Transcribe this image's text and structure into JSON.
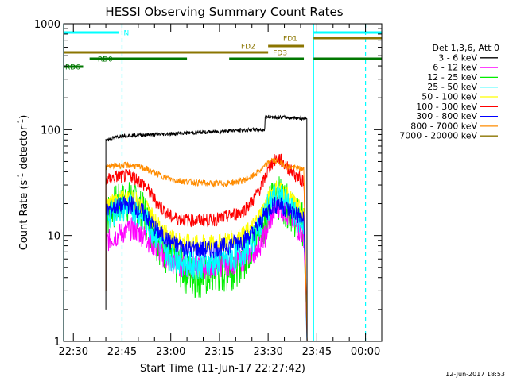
{
  "chart_data": {
    "type": "line",
    "title": "HESSI Observing Summary Count Rates",
    "xlabel": "Start Time (11-Jun-17 22:27:42)",
    "ylabel_main": "Count Rate (s",
    "ylabel_sup1": "-1",
    "ylabel_mid": " detector",
    "ylabel_sup2": "-1",
    "ylabel_end": ")",
    "y_scale": "log",
    "ylim": [
      1,
      1000
    ],
    "xlim_minutes_after_2230": [
      -3,
      95
    ],
    "x_ticks": [
      {
        "label": "22:30",
        "t": 0
      },
      {
        "label": "22:45",
        "t": 15
      },
      {
        "label": "23:00",
        "t": 30
      },
      {
        "label": "23:15",
        "t": 45
      },
      {
        "label": "23:30",
        "t": 60
      },
      {
        "label": "23:45",
        "t": 75
      },
      {
        "label": "00:00",
        "t": 90
      }
    ],
    "y_ticks": [
      {
        "label": "1",
        "v": 1
      },
      {
        "label": "10",
        "v": 10
      },
      {
        "label": "100",
        "v": 100
      },
      {
        "label": "1000",
        "v": 1000
      }
    ],
    "legend_header": "Det 1,3,6, Att 0",
    "legend_position": "right",
    "series": [
      {
        "name": "3 - 6 keV",
        "color": "#000000",
        "t": [
          10,
          10,
          15,
          25,
          35,
          45,
          48,
          58,
          59,
          59,
          60,
          66,
          71,
          72,
          72
        ],
        "values": [
          2,
          80,
          88,
          90,
          93,
          96,
          98,
          100,
          100,
          130,
          132,
          130,
          128,
          128,
          1
        ]
      },
      {
        "name": "6 - 12 keV",
        "color": "#ff00ff",
        "t": [
          10,
          10,
          13,
          18,
          22,
          26,
          30,
          36,
          42,
          47,
          52,
          55,
          57,
          59,
          61,
          63,
          66,
          69,
          71,
          72
        ],
        "values": [
          3,
          9,
          10,
          12,
          10,
          7.5,
          5.5,
          5.2,
          5.2,
          5.4,
          6,
          7,
          8,
          10,
          15,
          20,
          16,
          12,
          10,
          1
        ]
      },
      {
        "name": "12 - 25 keV",
        "color": "#00ee00",
        "t": [
          10,
          10,
          13,
          18,
          22,
          26,
          30,
          36,
          42,
          47,
          52,
          55,
          57,
          59,
          61,
          63,
          66,
          69,
          71,
          72
        ],
        "values": [
          3,
          16,
          21,
          23,
          17,
          10,
          6.5,
          4.5,
          4.5,
          5,
          6.5,
          8.5,
          11,
          16,
          23,
          26,
          21,
          16,
          14,
          1
        ]
      },
      {
        "name": "25 - 50 keV",
        "color": "#00ffff",
        "t": [
          10,
          10,
          13,
          18,
          22,
          26,
          30,
          36,
          42,
          47,
          52,
          55,
          57,
          59,
          61,
          63,
          66,
          69,
          71,
          72
        ],
        "values": [
          3,
          15,
          18,
          19,
          15,
          9.5,
          6.5,
          5.5,
          5.5,
          6,
          7,
          9,
          12,
          17,
          22,
          25,
          20,
          15,
          13,
          1
        ]
      },
      {
        "name": "50 - 100 keV",
        "color": "#ffff00",
        "t": [
          10,
          10,
          13,
          18,
          22,
          26,
          30,
          36,
          42,
          47,
          52,
          55,
          57,
          59,
          61,
          63,
          66,
          69,
          71,
          72
        ],
        "values": [
          3,
          19,
          22,
          23,
          19,
          13,
          9.5,
          8.5,
          8.5,
          9,
          10,
          12,
          15,
          19,
          26,
          29,
          24,
          19,
          17,
          1
        ]
      },
      {
        "name": "100 - 300 keV",
        "color": "#ff0000",
        "t": [
          10,
          10,
          13,
          18,
          22,
          26,
          30,
          36,
          42,
          47,
          52,
          55,
          57,
          59,
          61,
          63,
          66,
          69,
          71,
          72
        ],
        "values": [
          3,
          33,
          36,
          37,
          30,
          20,
          15,
          14,
          14,
          15,
          17,
          21,
          26,
          35,
          48,
          55,
          44,
          36,
          33,
          1
        ]
      },
      {
        "name": "300 - 800 keV",
        "color": "#0000ff",
        "t": [
          10,
          10,
          13,
          18,
          22,
          26,
          30,
          36,
          42,
          47,
          52,
          55,
          57,
          59,
          61,
          63,
          66,
          69,
          71,
          72
        ],
        "values": [
          3,
          17,
          19,
          20,
          16,
          11,
          8.5,
          7.5,
          7.5,
          8,
          9,
          10.5,
          12.5,
          16,
          19,
          20,
          18,
          16,
          14,
          1
        ]
      },
      {
        "name": "800 - 7000 keV",
        "color": "#ff8c00",
        "t": [
          10,
          10,
          13,
          18,
          22,
          26,
          30,
          36,
          42,
          47,
          52,
          55,
          57,
          59,
          61,
          63,
          66,
          69,
          71,
          72
        ],
        "values": [
          3,
          44,
          46,
          46,
          43,
          38,
          34,
          32,
          31,
          31,
          33,
          36,
          40,
          45,
          52,
          50,
          45,
          43,
          42,
          1
        ]
      },
      {
        "name": "7000 - 20000 keV",
        "color": "#8b7500",
        "t": [],
        "values": []
      }
    ],
    "state_bars": [
      {
        "label": "N",
        "color": "#00ffff",
        "segments": [
          [
            -3,
            14
          ],
          [
            74,
            95
          ]
        ],
        "label_t": 15.5,
        "label_side": "right",
        "row": 0
      },
      {
        "label": "FD1",
        "color": "#8b7500",
        "segments": [
          [
            74,
            95
          ]
        ],
        "label_t": 69,
        "label_side": "left",
        "row": 1
      },
      {
        "label": "FD2",
        "color": "#8b7500",
        "segments": [
          [
            60,
            71
          ]
        ],
        "label_t": 56,
        "label_side": "left",
        "row": 2
      },
      {
        "label": "FD3",
        "color": "#8b7500",
        "segments": [
          [
            -3,
            60
          ]
        ],
        "label_t": 61.5,
        "label_side": "right",
        "row": 3
      },
      {
        "label": "RD0",
        "color": "#007700",
        "segments": [
          [
            5,
            35
          ],
          [
            48,
            71
          ],
          [
            74,
            95
          ]
        ],
        "label_t": 7.5,
        "label_side": "right",
        "row": 4
      },
      {
        "label": "RD6",
        "color": "#007700",
        "segments": [
          [
            -3,
            3
          ]
        ],
        "label_t": -2.5,
        "label_side": "right",
        "row": 5
      }
    ],
    "vlines": [
      {
        "t": -3,
        "color": "#00ffff",
        "dashed": false
      },
      {
        "t": 15,
        "color": "#00ffff",
        "dashed": true
      },
      {
        "t": 74,
        "color": "#00ffff",
        "dashed": false
      },
      {
        "t": 90,
        "color": "#00ffff",
        "dashed": true
      }
    ]
  },
  "footer_timestamp": "12-Jun-2017 18:53"
}
